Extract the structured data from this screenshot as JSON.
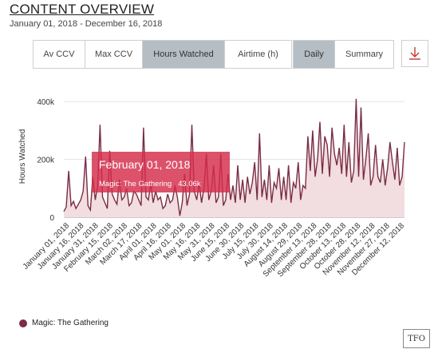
{
  "header": {
    "title": "CONTENT OVERVIEW",
    "subtitle": "January 01, 2018 - December 16, 2018"
  },
  "metric_tabs": [
    "Av CCV",
    "Max CCV",
    "Hours Watched",
    "Airtime (h)"
  ],
  "metric_active": "Hours Watched",
  "period_tabs": [
    "Daily",
    "Summary"
  ],
  "period_active": "Daily",
  "download_icon": "download-icon",
  "tooltip": {
    "date": "February 01, 2018",
    "series": "Magic: The Gathering",
    "value": "43.06k"
  },
  "legend": {
    "label": "Magic: The Gathering",
    "color": "#7a2d45"
  },
  "logo_text": "TFO",
  "chart_data": {
    "type": "area",
    "ylabel": "Hours Watched",
    "ylim": [
      0,
      420000
    ],
    "yticks": [
      0,
      200000,
      400000
    ],
    "ytick_labels": [
      "0",
      "200k",
      "400k"
    ],
    "grid": true,
    "legend_position": "bottom-left",
    "line_color": "#7a2d45",
    "fill_color": "#f2dde1",
    "x_tick_labels": [
      "January 01, 2018",
      "January 16, 2018",
      "January 31, 2018",
      "February 15, 2018",
      "March 02, 2018",
      "March 17, 2018",
      "April 01, 2018",
      "April 16, 2018",
      "May 01, 2018",
      "May 16, 2018",
      "May 31, 2018",
      "June 15, 2018",
      "June 30, 2018",
      "July 15, 2018",
      "July 30, 2018",
      "August 14, 2018",
      "August 29, 2018",
      "September 13, 2018",
      "September 28, 2018",
      "October 13, 2018",
      "October 28, 2018",
      "November 12, 2018",
      "November 27, 2018",
      "December 12, 2018"
    ],
    "series": [
      {
        "name": "Magic: The Gathering",
        "values": [
          20000,
          35000,
          160000,
          40000,
          55000,
          30000,
          45000,
          60000,
          90000,
          210000,
          40000,
          25000,
          140000,
          60000,
          110000,
          320000,
          70000,
          50000,
          30000,
          230000,
          80000,
          60000,
          45000,
          130000,
          60000,
          70000,
          100000,
          40000,
          50000,
          90000,
          80000,
          60000,
          40000,
          310000,
          70000,
          60000,
          120000,
          50000,
          90000,
          60000,
          70000,
          30000,
          40000,
          80000,
          50000,
          60000,
          110000,
          70000,
          5000,
          50000,
          150000,
          40000,
          80000,
          320000,
          90000,
          60000,
          120000,
          50000,
          100000,
          220000,
          60000,
          90000,
          180000,
          50000,
          70000,
          220000,
          40000,
          60000,
          150000,
          60000,
          110000,
          50000,
          180000,
          60000,
          130000,
          50000,
          140000,
          80000,
          120000,
          190000,
          60000,
          290000,
          70000,
          130000,
          60000,
          180000,
          50000,
          120000,
          100000,
          170000,
          60000,
          140000,
          60000,
          180000,
          50000,
          120000,
          100000,
          190000,
          60000,
          110000,
          100000,
          280000,
          160000,
          300000,
          140000,
          200000,
          330000,
          150000,
          280000,
          250000,
          140000,
          310000,
          220000,
          180000,
          240000,
          150000,
          320000,
          140000,
          260000,
          120000,
          160000,
          410000,
          140000,
          380000,
          130000,
          200000,
          290000,
          110000,
          140000,
          250000,
          140000,
          120000,
          200000,
          110000,
          170000,
          260000,
          190000,
          130000,
          240000,
          110000,
          140000,
          260000
        ]
      }
    ]
  }
}
